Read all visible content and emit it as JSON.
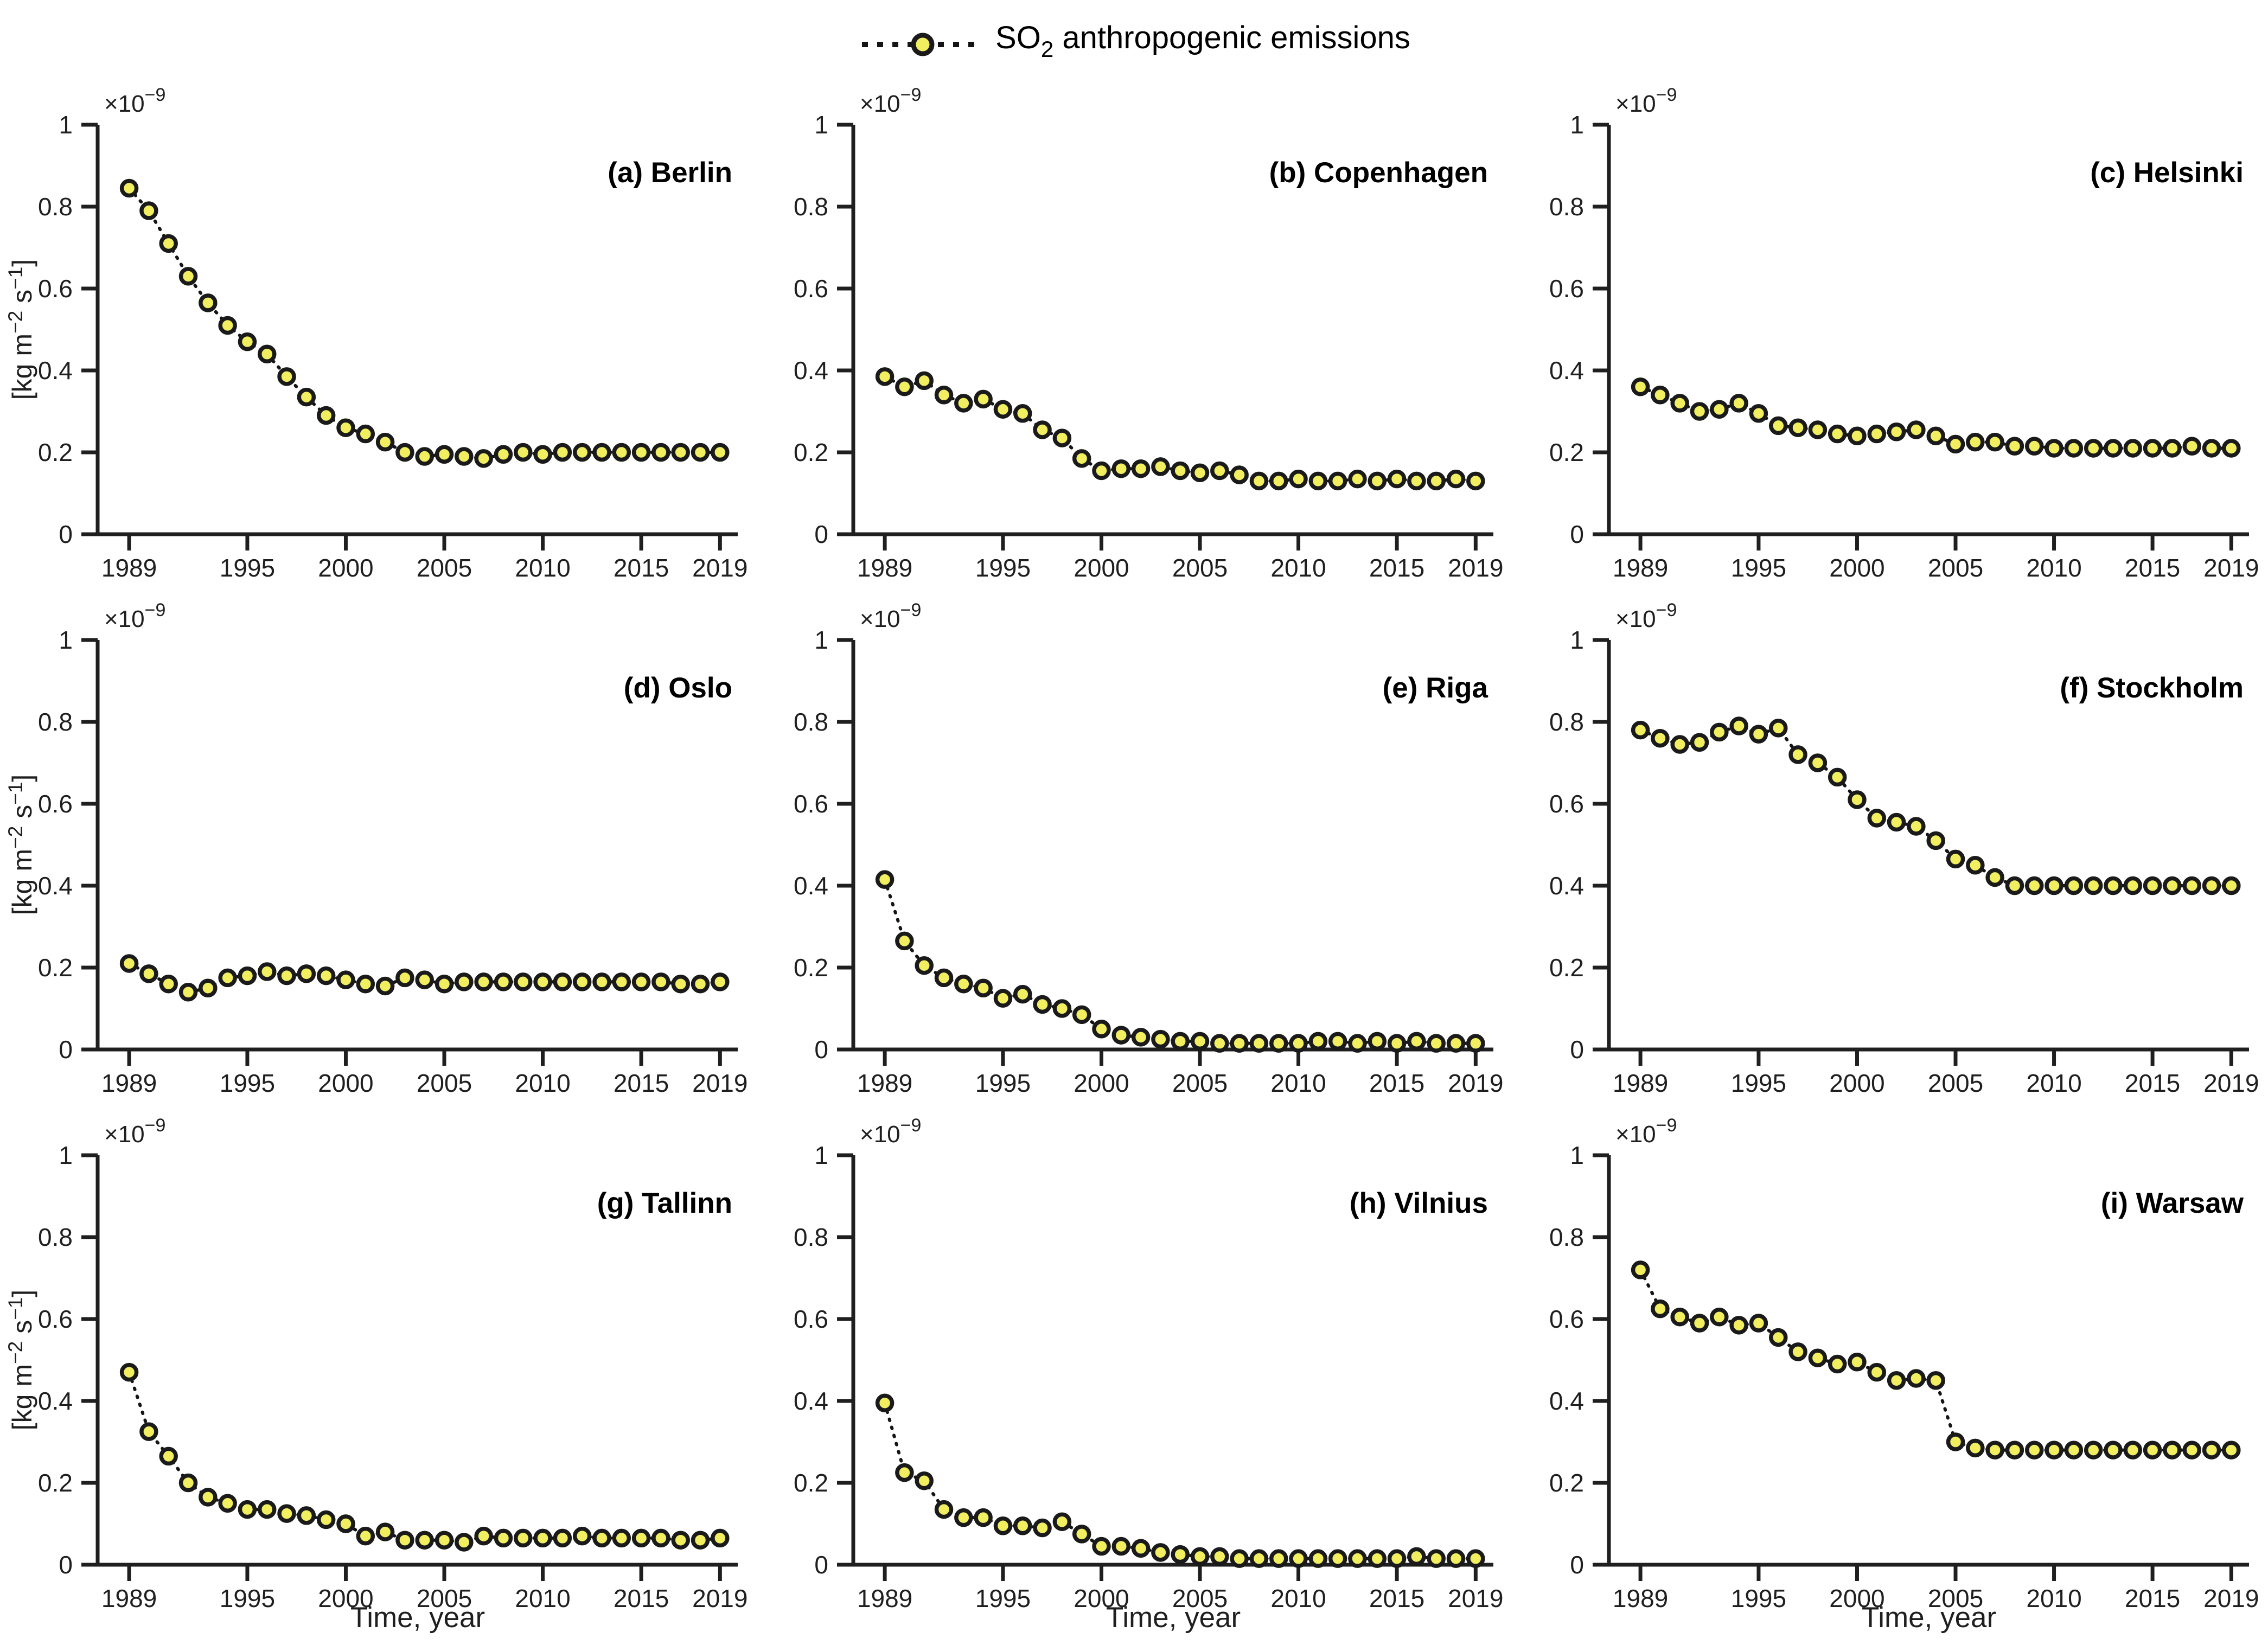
{
  "legend": {
    "marker": "yellow-circle-on-dotted-line",
    "text_prefix": "SO",
    "text_sub": "2",
    "text_suffix": " anthropogenic emissions"
  },
  "style": {
    "background": "#ffffff",
    "marker_fill": "#f1ee60",
    "marker_edge": "#1a1a1a",
    "line_color": "#141414",
    "axis_color": "#1f1f1f",
    "tick_label_color": "#1f1f1f",
    "title_color": "#000000"
  },
  "axes": {
    "xlabel": "Time, year",
    "ylabel_parts": [
      {
        "text": "[kg m"
      },
      {
        "text": "−2",
        "sup": true
      },
      {
        "text": " s"
      },
      {
        "text": "−1",
        "sup": true
      },
      {
        "text": "]"
      }
    ],
    "offset": {
      "base": "×10",
      "exp": "−9"
    },
    "x_tick_labels": [
      "1989",
      "1995",
      "2000",
      "2005",
      "2010",
      "2015",
      "2019"
    ],
    "y_tick_labels": [
      "0",
      "0.2",
      "0.4",
      "0.6",
      "0.8",
      "1"
    ]
  },
  "chart_data": {
    "type": "line",
    "title": "SO2 anthropogenic emissions",
    "xlabel": "Time, year",
    "ylabel": "[kg m^-2 s^-1]",
    "y_scale": 1e-09,
    "ylim": [
      0,
      1e-09
    ],
    "xlim": [
      1987.4,
      2019.9
    ],
    "x_ticks": [
      1989,
      1995,
      2000,
      2005,
      2010,
      2015,
      2019
    ],
    "y_ticks_mantissa": [
      0,
      0.2,
      0.4,
      0.6,
      0.8,
      1
    ],
    "grid": false,
    "legend_position": "top-center",
    "marker": "circle",
    "line_style": "dotted",
    "x": [
      1989,
      1990,
      1991,
      1992,
      1993,
      1994,
      1995,
      1996,
      1997,
      1998,
      1999,
      2000,
      2001,
      2002,
      2003,
      2004,
      2005,
      2006,
      2007,
      2008,
      2009,
      2010,
      2011,
      2012,
      2013,
      2014,
      2015,
      2016,
      2017,
      2018,
      2019
    ],
    "series": [
      {
        "panel": "(a)",
        "name": "Berlin",
        "values_e9": [
          0.845,
          0.79,
          0.71,
          0.63,
          0.565,
          0.51,
          0.47,
          0.44,
          0.385,
          0.335,
          0.29,
          0.26,
          0.245,
          0.225,
          0.2,
          0.19,
          0.195,
          0.19,
          0.185,
          0.195,
          0.2,
          0.195,
          0.2,
          0.2,
          0.2,
          0.2,
          0.2,
          0.2,
          0.2,
          0.2,
          0.2
        ]
      },
      {
        "panel": "(b)",
        "name": "Copenhagen",
        "values_e9": [
          0.385,
          0.36,
          0.375,
          0.34,
          0.32,
          0.33,
          0.305,
          0.295,
          0.255,
          0.235,
          0.185,
          0.155,
          0.16,
          0.16,
          0.165,
          0.155,
          0.15,
          0.155,
          0.145,
          0.13,
          0.13,
          0.135,
          0.13,
          0.13,
          0.135,
          0.13,
          0.135,
          0.13,
          0.13,
          0.135,
          0.13
        ]
      },
      {
        "panel": "(c)",
        "name": "Helsinki",
        "values_e9": [
          0.36,
          0.34,
          0.32,
          0.3,
          0.305,
          0.32,
          0.295,
          0.265,
          0.26,
          0.255,
          0.245,
          0.24,
          0.245,
          0.25,
          0.255,
          0.24,
          0.22,
          0.225,
          0.225,
          0.215,
          0.215,
          0.21,
          0.21,
          0.21,
          0.21,
          0.21,
          0.21,
          0.21,
          0.215,
          0.21,
          0.21
        ]
      },
      {
        "panel": "(d)",
        "name": "Oslo",
        "values_e9": [
          0.21,
          0.185,
          0.16,
          0.14,
          0.15,
          0.175,
          0.18,
          0.19,
          0.18,
          0.185,
          0.18,
          0.17,
          0.16,
          0.155,
          0.175,
          0.17,
          0.16,
          0.165,
          0.165,
          0.165,
          0.165,
          0.165,
          0.165,
          0.165,
          0.165,
          0.165,
          0.165,
          0.165,
          0.16,
          0.16,
          0.165
        ]
      },
      {
        "panel": "(e)",
        "name": "Riga",
        "values_e9": [
          0.415,
          0.265,
          0.205,
          0.175,
          0.16,
          0.15,
          0.125,
          0.135,
          0.11,
          0.1,
          0.085,
          0.05,
          0.035,
          0.03,
          0.025,
          0.02,
          0.02,
          0.015,
          0.015,
          0.015,
          0.015,
          0.015,
          0.02,
          0.02,
          0.015,
          0.02,
          0.015,
          0.02,
          0.015,
          0.015,
          0.015
        ]
      },
      {
        "panel": "(f)",
        "name": "Stockholm",
        "values_e9": [
          0.78,
          0.76,
          0.745,
          0.75,
          0.775,
          0.79,
          0.77,
          0.785,
          0.72,
          0.7,
          0.665,
          0.61,
          0.565,
          0.555,
          0.545,
          0.51,
          0.465,
          0.45,
          0.42,
          0.4,
          0.4,
          0.4,
          0.4,
          0.4,
          0.4,
          0.4,
          0.4,
          0.4,
          0.4,
          0.4,
          0.4
        ]
      },
      {
        "panel": "(g)",
        "name": "Tallinn",
        "values_e9": [
          0.47,
          0.325,
          0.265,
          0.2,
          0.165,
          0.15,
          0.135,
          0.135,
          0.125,
          0.12,
          0.11,
          0.1,
          0.07,
          0.08,
          0.06,
          0.06,
          0.06,
          0.055,
          0.07,
          0.065,
          0.065,
          0.065,
          0.065,
          0.07,
          0.065,
          0.065,
          0.065,
          0.065,
          0.06,
          0.06,
          0.065
        ]
      },
      {
        "panel": "(h)",
        "name": "Vilnius",
        "values_e9": [
          0.395,
          0.225,
          0.205,
          0.135,
          0.115,
          0.115,
          0.095,
          0.095,
          0.09,
          0.105,
          0.075,
          0.045,
          0.045,
          0.04,
          0.03,
          0.025,
          0.02,
          0.02,
          0.015,
          0.015,
          0.015,
          0.015,
          0.015,
          0.015,
          0.015,
          0.015,
          0.015,
          0.02,
          0.015,
          0.015,
          0.015
        ]
      },
      {
        "panel": "(i)",
        "name": "Warsaw",
        "values_e9": [
          0.72,
          0.625,
          0.605,
          0.59,
          0.605,
          0.585,
          0.59,
          0.555,
          0.52,
          0.505,
          0.49,
          0.495,
          0.47,
          0.45,
          0.455,
          0.45,
          0.3,
          0.285,
          0.28,
          0.28,
          0.28,
          0.28,
          0.28,
          0.28,
          0.28,
          0.28,
          0.28,
          0.28,
          0.28,
          0.28,
          0.28
        ]
      }
    ]
  }
}
